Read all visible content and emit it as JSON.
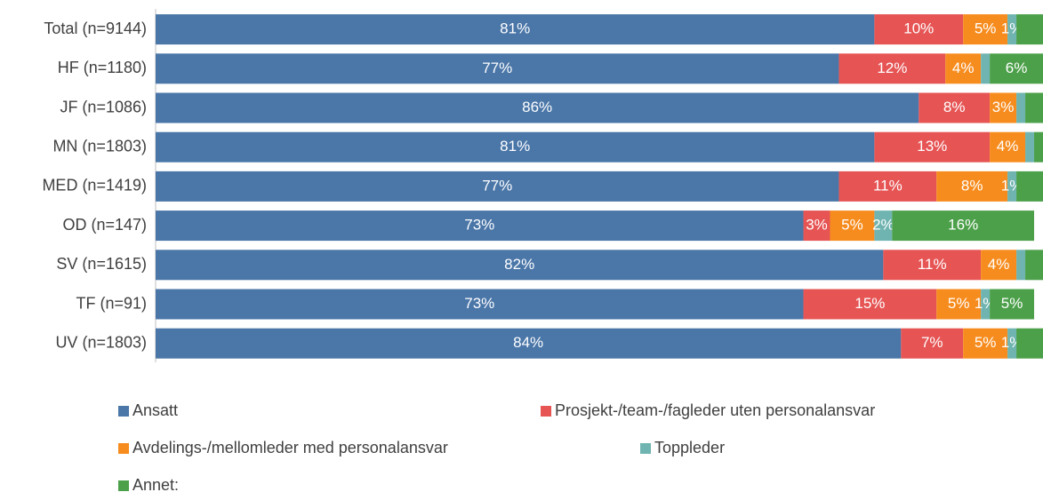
{
  "chart_data": {
    "type": "stacked-bar-horizontal",
    "categories": [
      "Total (n=9144)",
      "HF (n=1180)",
      "JF (n=1086)",
      "MN (n=1803)",
      "MED (n=1419)",
      "OD (n=147)",
      "SV (n=1615)",
      "TF (n=91)",
      "UV (n=1803)"
    ],
    "xlim": [
      0,
      100
    ],
    "series": [
      {
        "name": "Ansatt",
        "color": "#4a76a8",
        "values": [
          81,
          77,
          86,
          81,
          77,
          73,
          82,
          73,
          84
        ],
        "value_labels": [
          "81%",
          "77%",
          "86%",
          "81%",
          "77%",
          "73%",
          "82%",
          "73%",
          "84%"
        ]
      },
      {
        "name": "Prosjekt-/team-/fagleder uten personalansvar",
        "color": "#e65454",
        "values": [
          10,
          12,
          8,
          13,
          11,
          3,
          11,
          15,
          7
        ],
        "value_labels": [
          "10%",
          "12%",
          "8%",
          "13%",
          "11%",
          "3%",
          "11%",
          "15%",
          "7%"
        ]
      },
      {
        "name": "Avdelings-/mellomleder med personalansvar",
        "color": "#f78c1e",
        "values": [
          5,
          4,
          3,
          4,
          8,
          5,
          4,
          5,
          5
        ],
        "value_labels": [
          "5%",
          "4%",
          "3%",
          "4%",
          "8%",
          "5%",
          "4%",
          "5%",
          "5%"
        ]
      },
      {
        "name": "Toppleder",
        "color": "#6fb4b0",
        "values": [
          1,
          1,
          1,
          1,
          1,
          2,
          1,
          1,
          1
        ],
        "value_labels": [
          "1%",
          null,
          null,
          null,
          "1%",
          "2%",
          null,
          "1%",
          "1%"
        ]
      },
      {
        "name": "Annet:",
        "color": "#4ca04a",
        "values": [
          3,
          6,
          2,
          1,
          3,
          16,
          2,
          5,
          3
        ],
        "value_labels": [
          null,
          "6%",
          null,
          null,
          null,
          "16%",
          null,
          "5%",
          null
        ]
      }
    ]
  }
}
